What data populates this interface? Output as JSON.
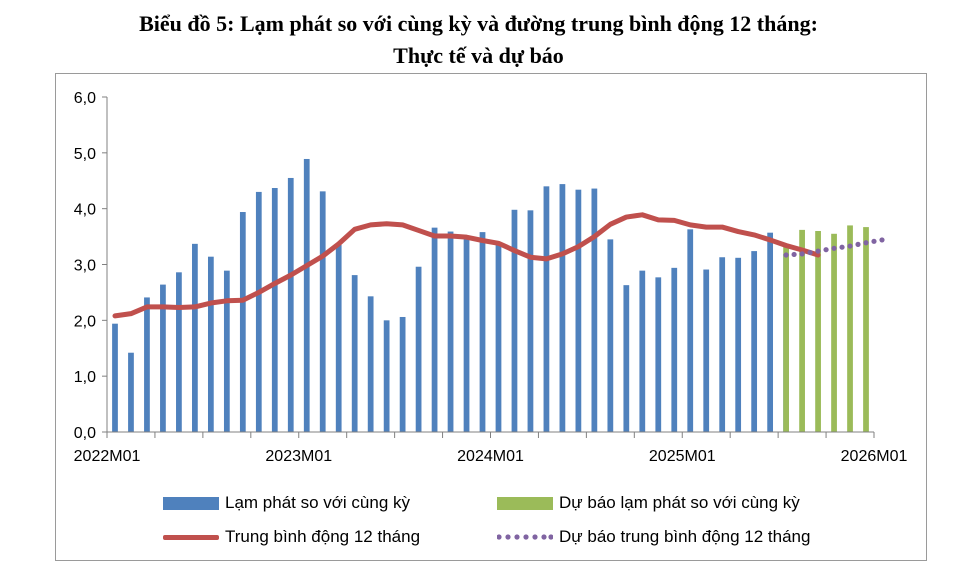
{
  "title_line1": "Biểu đồ 5: Lạm phát so với cùng kỳ và đường trung bình động 12 tháng:",
  "title_line2": "Thực tế và dự báo",
  "colors": {
    "actual_bar": "#4f81bd",
    "forecast_bar": "#9bbb59",
    "moving_avg": "#c0504d",
    "forecast_moving_avg": "#8064a2",
    "axis": "#808080"
  },
  "chart_data": {
    "type": "bar",
    "title": "Biểu đồ 5: Lạm phát so với cùng kỳ và đường trung bình động 12 tháng: Thực tế và dự báo",
    "ylim": [
      0,
      6
    ],
    "y_ticks": [
      "0,0",
      "1,0",
      "2,0",
      "3,0",
      "4,0",
      "5,0",
      "6,0"
    ],
    "x_tick_labels": [
      "2022M01",
      "2023M01",
      "2024M01",
      "2025M01",
      "2026M01"
    ],
    "grid": false,
    "legend_position": "bottom",
    "series": [
      {
        "name": "Lạm phát so với cùng kỳ",
        "kind": "bar",
        "start_month": "2022M01",
        "values": [
          1.94,
          1.42,
          2.41,
          2.64,
          2.86,
          3.37,
          3.14,
          2.89,
          3.94,
          4.3,
          4.37,
          4.55,
          4.89,
          4.31,
          3.35,
          2.81,
          2.43,
          2.0,
          2.06,
          2.96,
          3.66,
          3.59,
          3.45,
          3.58,
          3.37,
          3.98,
          3.97,
          4.4,
          4.44,
          4.34,
          4.36,
          3.45,
          2.63,
          2.89,
          2.77,
          2.94,
          3.63,
          2.91,
          3.13,
          3.12,
          3.24,
          3.57,
          3.19
        ]
      },
      {
        "name": "Dự báo lạm phát so với cùng kỳ",
        "kind": "bar",
        "start_month": "2025M07",
        "values": [
          3.35,
          3.62,
          3.6,
          3.55,
          3.7,
          3.67
        ]
      },
      {
        "name": "Trung bình động 12 tháng",
        "kind": "line",
        "start_month": "2022M01",
        "values": [
          2.08,
          2.12,
          2.24,
          2.24,
          2.23,
          2.24,
          2.31,
          2.35,
          2.36,
          2.5,
          2.66,
          2.81,
          2.98,
          3.15,
          3.37,
          3.63,
          3.71,
          3.73,
          3.71,
          3.61,
          3.51,
          3.51,
          3.49,
          3.43,
          3.38,
          3.25,
          3.13,
          3.1,
          3.19,
          3.32,
          3.5,
          3.72,
          3.85,
          3.89,
          3.8,
          3.79,
          3.71,
          3.67,
          3.67,
          3.59,
          3.53,
          3.44,
          3.34,
          3.26,
          3.17
        ]
      },
      {
        "name": "Dự báo trung bình động 12 tháng",
        "kind": "dotted-line",
        "start_month": "2025M07",
        "values": [
          3.17,
          3.19,
          3.24,
          3.29,
          3.33,
          3.39,
          3.44
        ]
      }
    ]
  },
  "legend": [
    {
      "label": "Lạm phát so với cùng kỳ",
      "swatch": "bar",
      "color": "#4f81bd"
    },
    {
      "label": "Dự báo lạm phát so với cùng kỳ",
      "swatch": "bar",
      "color": "#9bbb59"
    },
    {
      "label": "Trung bình động 12 tháng",
      "swatch": "line",
      "color": "#c0504d"
    },
    {
      "label": "Dự báo trung bình động 12 tháng",
      "swatch": "dots",
      "color": "#8064a2"
    }
  ]
}
